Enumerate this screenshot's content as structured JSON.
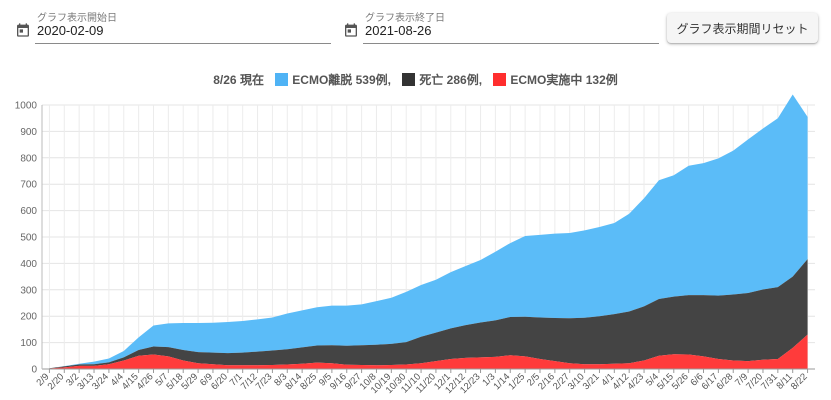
{
  "controls": {
    "start_label": "グラフ表示開始日",
    "start_value": "2020-02-09",
    "end_label": "グラフ表示終了日",
    "end_value": "2021-08-26",
    "reset_label": "グラフ表示期間リセット",
    "calendar_icon": "calendar-icon"
  },
  "legend": {
    "prefix": "8/26 現在",
    "items": [
      {
        "label": "ECMO離脱 539例,",
        "color": "#4fb3f5"
      },
      {
        "label": "死亡 286例,",
        "color": "#333333"
      },
      {
        "label": "ECMO実施中 132例",
        "color": "#ff2e2e"
      }
    ]
  },
  "chart_data": {
    "type": "area",
    "stacked": true,
    "title": "",
    "xlabel": "",
    "ylabel": "",
    "ylim": [
      0,
      1000
    ],
    "yticks": [
      0,
      100,
      200,
      300,
      400,
      500,
      600,
      700,
      800,
      900,
      1000
    ],
    "grid": true,
    "legend_position": "top-center",
    "x_tick_labels": [
      "2/9",
      "2/20",
      "3/2",
      "3/13",
      "3/24",
      "4/4",
      "4/15",
      "4/26",
      "5/7",
      "5/18",
      "5/29",
      "6/9",
      "6/20",
      "7/1",
      "7/12",
      "7/23",
      "8/3",
      "8/14",
      "8/25",
      "9/5",
      "9/16",
      "9/27",
      "10/8",
      "10/19",
      "10/30",
      "11/10",
      "11/20",
      "12/1",
      "12/12",
      "12/23",
      "1/3",
      "1/14",
      "1/25",
      "2/5",
      "2/16",
      "2/27",
      "3/10",
      "3/21",
      "4/1",
      "4/12",
      "4/23",
      "5/4",
      "5/15",
      "5/26",
      "6/6",
      "6/17",
      "6/28",
      "7/9",
      "7/20",
      "7/31",
      "8/11",
      "8/22"
    ],
    "series_order_bottom_to_top": [
      "ECMO実施中",
      "死亡",
      "ECMO離脱"
    ],
    "series": [
      {
        "name": "ECMO実施中",
        "color": "#ff3b3b",
        "values": [
          2,
          6,
          12,
          12,
          18,
          32,
          50,
          55,
          48,
          32,
          22,
          18,
          14,
          14,
          14,
          15,
          17,
          20,
          24,
          22,
          16,
          15,
          14,
          15,
          17,
          22,
          30,
          38,
          42,
          44,
          46,
          52,
          48,
          38,
          30,
          22,
          18,
          18,
          20,
          22,
          32,
          50,
          56,
          55,
          48,
          38,
          32,
          30,
          35,
          38,
          80,
          130
        ]
      },
      {
        "name": "死亡",
        "color": "#444444",
        "values": [
          1,
          4,
          5,
          6,
          7,
          12,
          22,
          30,
          35,
          40,
          42,
          44,
          46,
          48,
          52,
          55,
          58,
          62,
          65,
          68,
          72,
          75,
          78,
          80,
          85,
          100,
          108,
          116,
          124,
          132,
          138,
          145,
          150,
          157,
          163,
          170,
          176,
          182,
          188,
          196,
          205,
          215,
          218,
          225,
          232,
          240,
          250,
          258,
          266,
          272,
          270,
          286
        ]
      },
      {
        "name": "ECMO離脱",
        "color": "#5bbcf8",
        "values": [
          0,
          1,
          3,
          10,
          15,
          24,
          48,
          80,
          90,
          102,
          110,
          113,
          118,
          120,
          122,
          125,
          135,
          140,
          145,
          150,
          152,
          155,
          165,
          175,
          190,
          196,
          200,
          213,
          224,
          237,
          260,
          280,
          306,
          313,
          320,
          323,
          331,
          338,
          345,
          370,
          410,
          450,
          460,
          490,
          500,
          520,
          545,
          582,
          610,
          640,
          690,
          539
        ]
      }
    ]
  }
}
